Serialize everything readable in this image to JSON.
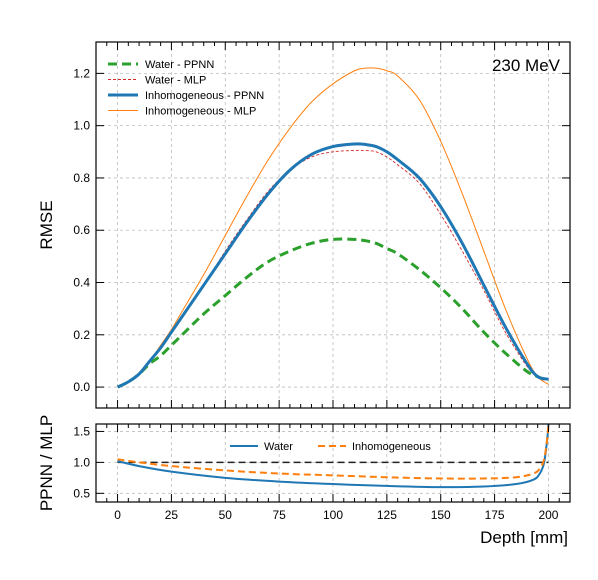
{
  "chart_data": [
    {
      "type": "line",
      "panel": "main",
      "annotation": "230 MeV",
      "ylabel": "RMSE",
      "xlim": [
        -10,
        210
      ],
      "ylim": [
        -0.08,
        1.32
      ],
      "yticks": [
        "0.0",
        "0.2",
        "0.4",
        "0.6",
        "0.8",
        "1.0",
        "1.2"
      ],
      "ytick_values": [
        0.0,
        0.2,
        0.4,
        0.6,
        0.8,
        1.0,
        1.2
      ],
      "grid": true,
      "legend_position": "upper-left",
      "x": [
        0,
        5,
        10,
        15,
        20,
        25,
        30,
        40,
        50,
        60,
        70,
        80,
        90,
        100,
        110,
        115,
        120,
        125,
        130,
        140,
        150,
        160,
        170,
        180,
        190,
        195,
        200
      ],
      "series": [
        {
          "name": "Water - PPNN",
          "color": "#2ca02c",
          "style": "dashed-thick",
          "values": [
            0.0,
            0.02,
            0.05,
            0.09,
            0.12,
            0.16,
            0.2,
            0.28,
            0.35,
            0.42,
            0.48,
            0.52,
            0.55,
            0.565,
            0.565,
            0.56,
            0.55,
            0.53,
            0.51,
            0.45,
            0.38,
            0.3,
            0.21,
            0.13,
            0.06,
            0.04,
            0.02
          ]
        },
        {
          "name": "Water - MLP",
          "color": "#d62728",
          "style": "dashed-thin",
          "values": [
            0.0,
            0.02,
            0.05,
            0.1,
            0.15,
            0.21,
            0.27,
            0.39,
            0.52,
            0.64,
            0.75,
            0.83,
            0.88,
            0.9,
            0.905,
            0.905,
            0.9,
            0.88,
            0.85,
            0.78,
            0.66,
            0.52,
            0.37,
            0.21,
            0.08,
            0.04,
            0.03
          ]
        },
        {
          "name": "Inhomogeneous - PPNN",
          "color": "#1f77b4",
          "style": "solid-thick",
          "values": [
            0.0,
            0.02,
            0.05,
            0.1,
            0.15,
            0.21,
            0.27,
            0.39,
            0.51,
            0.63,
            0.74,
            0.83,
            0.89,
            0.92,
            0.93,
            0.928,
            0.92,
            0.9,
            0.87,
            0.8,
            0.69,
            0.55,
            0.39,
            0.23,
            0.09,
            0.04,
            0.03
          ]
        },
        {
          "name": "Inhomogeneous - MLP",
          "color": "#ff7f0e",
          "style": "solid-thin",
          "values": [
            0.0,
            0.02,
            0.05,
            0.1,
            0.16,
            0.22,
            0.29,
            0.43,
            0.58,
            0.73,
            0.87,
            0.99,
            1.09,
            1.16,
            1.21,
            1.22,
            1.22,
            1.21,
            1.19,
            1.1,
            0.94,
            0.74,
            0.52,
            0.3,
            0.11,
            0.04,
            0.01
          ]
        }
      ]
    },
    {
      "type": "line",
      "panel": "ratio",
      "xlabel": "Depth [mm]",
      "ylabel": "PPNN / MLP",
      "xlim": [
        -10,
        210
      ],
      "ylim": [
        0.36,
        1.62
      ],
      "xticks": [
        "0",
        "25",
        "50",
        "75",
        "100",
        "125",
        "150",
        "175",
        "200"
      ],
      "xtick_values": [
        0,
        25,
        50,
        75,
        100,
        125,
        150,
        175,
        200
      ],
      "yticks": [
        "0.5",
        "1.0",
        "1.5"
      ],
      "ytick_values": [
        0.5,
        1.0,
        1.5
      ],
      "grid": true,
      "legend_position": "upper-center",
      "reference_line": 1.0,
      "series": [
        {
          "name": "Water",
          "color": "#1f77b4",
          "style": "solid",
          "x": [
            0,
            10,
            25,
            50,
            75,
            100,
            125,
            150,
            170,
            185,
            193,
            196,
            198,
            199.5,
            200
          ],
          "values": [
            1.02,
            0.94,
            0.85,
            0.75,
            0.69,
            0.65,
            0.62,
            0.6,
            0.61,
            0.65,
            0.72,
            0.82,
            1.0,
            1.4,
            1.62
          ]
        },
        {
          "name": "Inhomogeneous",
          "color": "#ff7f0e",
          "style": "dashed",
          "x": [
            0,
            10,
            25,
            50,
            75,
            100,
            125,
            150,
            170,
            185,
            193,
            196,
            198,
            199.5,
            200
          ],
          "values": [
            1.05,
            1.0,
            0.94,
            0.87,
            0.82,
            0.79,
            0.76,
            0.74,
            0.74,
            0.76,
            0.82,
            0.9,
            1.05,
            1.4,
            1.62
          ]
        }
      ]
    }
  ]
}
